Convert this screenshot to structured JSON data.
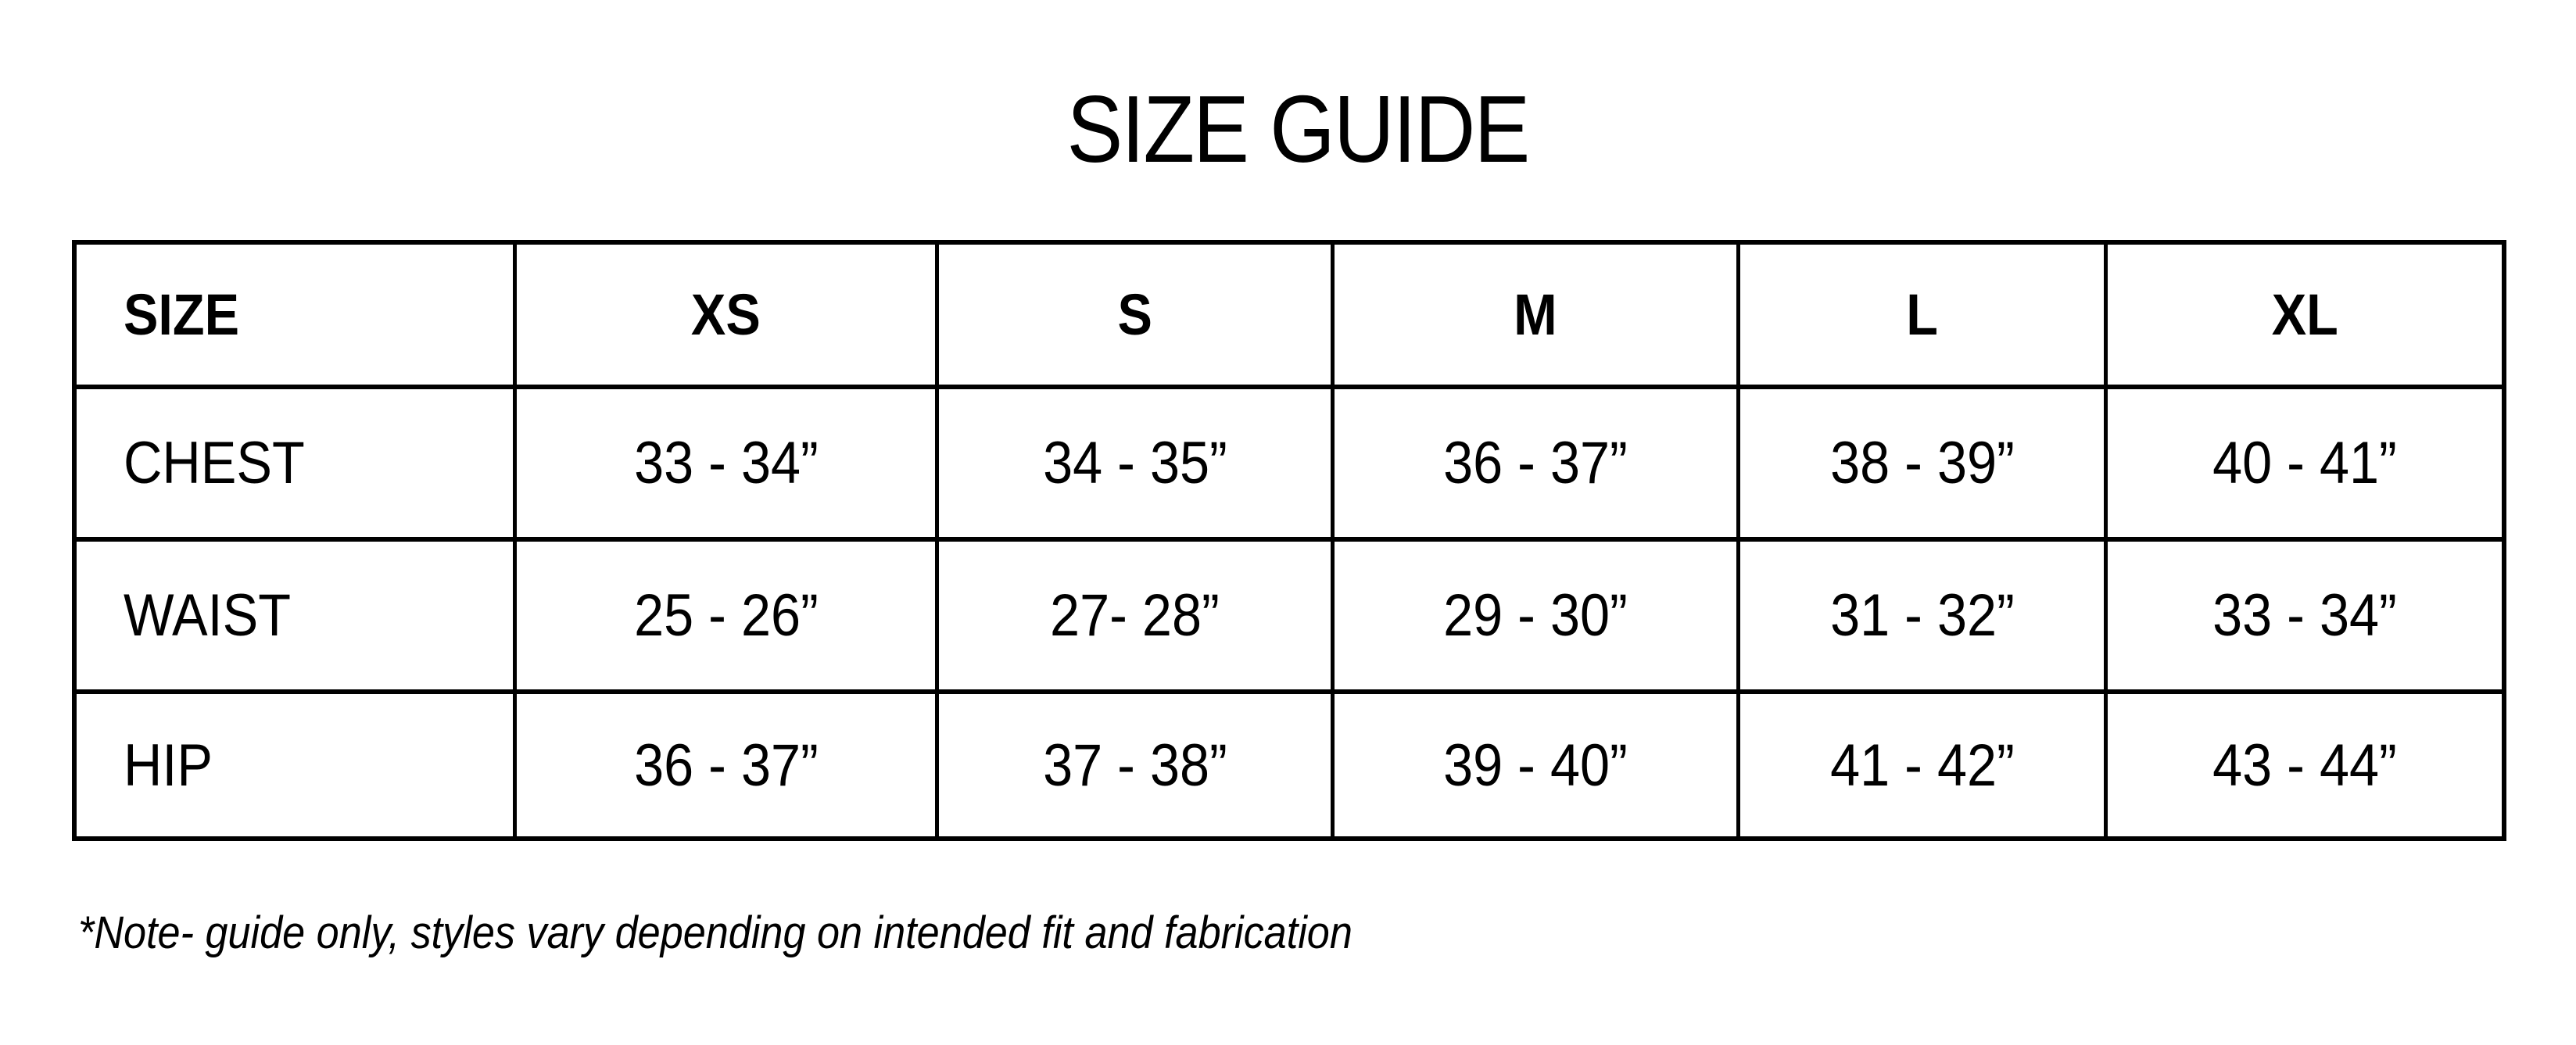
{
  "title": "SIZE GUIDE",
  "table": {
    "headers": [
      "SIZE",
      "XS",
      "S",
      "M",
      "L",
      "XL"
    ],
    "rows": [
      {
        "label": "CHEST",
        "values": [
          "33 - 34”",
          "34 - 35”",
          "36 - 37”",
          "38 - 39”",
          "40 - 41”"
        ]
      },
      {
        "label": "WAIST",
        "values": [
          "25 - 26”",
          "27- 28”",
          "29 - 30”",
          "31 - 32”",
          "33 - 34”"
        ]
      },
      {
        "label": "HIP",
        "values": [
          "36 - 37”",
          "37 - 38”",
          "39 - 40”",
          "41 - 42”",
          "43 - 44”"
        ]
      }
    ]
  },
  "note": "*Note- guide only, styles vary depending on intended fit and fabrication"
}
